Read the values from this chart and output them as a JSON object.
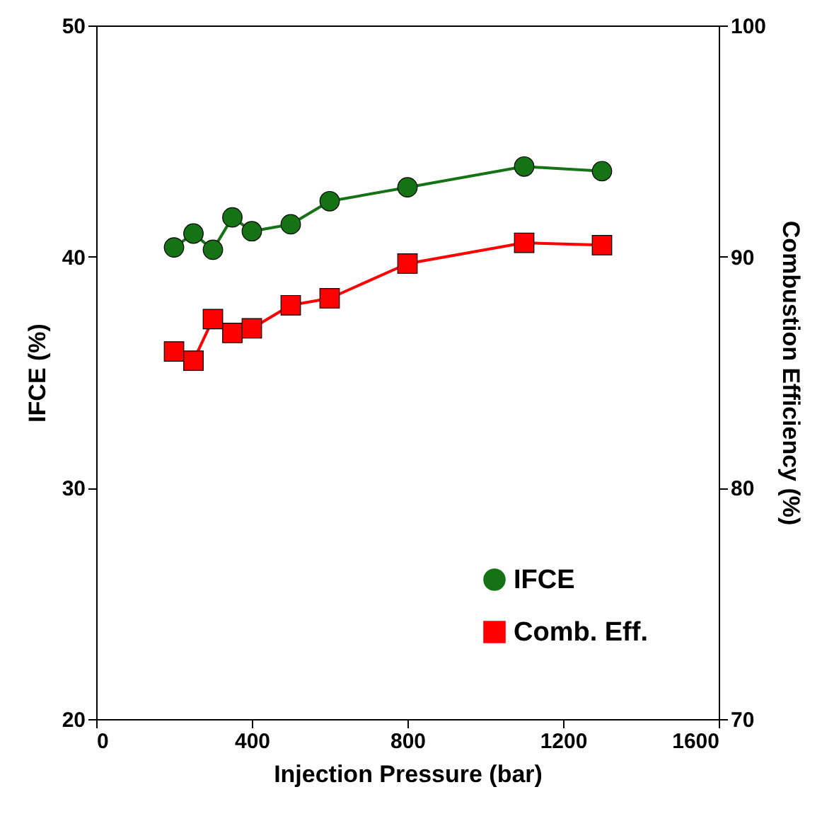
{
  "chart_data": {
    "type": "line",
    "xlabel": "Injection Pressure (bar)",
    "ylabel": "IFCE (%)",
    "y2label": "Combustion Efficiency (%)",
    "x": [
      200,
      250,
      300,
      350,
      400,
      500,
      600,
      800,
      1100,
      1300
    ],
    "series": [
      {
        "name": "IFCE",
        "color": "#157315",
        "marker": "circle",
        "values": [
          40.4,
          41.0,
          40.3,
          41.7,
          41.1,
          41.4,
          42.4,
          43.0,
          43.9,
          43.7
        ]
      },
      {
        "name": "Comb. Eff.",
        "color": "#ff0000",
        "marker": "square",
        "axis": "y2",
        "values": [
          85.9,
          85.5,
          87.3,
          86.7,
          86.9,
          87.9,
          88.2,
          89.7,
          90.6,
          90.5
        ]
      }
    ],
    "xlim": [
      0,
      1600
    ],
    "xticks": [
      0,
      400,
      800,
      1200,
      1600
    ],
    "ylim": [
      20,
      50
    ],
    "yticks": [
      20,
      30,
      40,
      50
    ],
    "y2lim": [
      70,
      100
    ],
    "y2ticks": [
      70,
      80,
      90,
      100
    ],
    "grid": false,
    "legend": "bottom right",
    "line_style": "solid"
  }
}
